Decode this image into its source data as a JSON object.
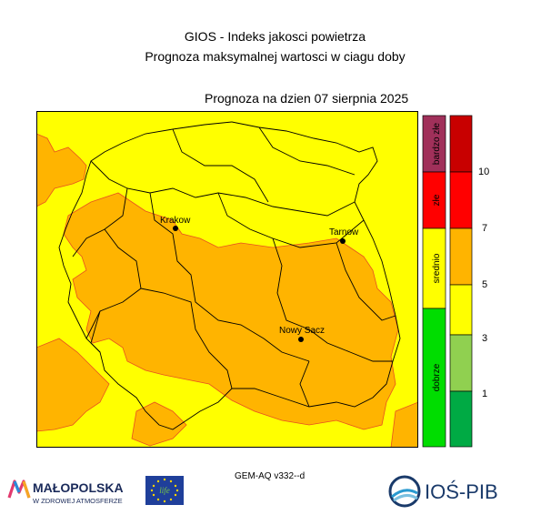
{
  "header": {
    "title_line1": "GIOS - Indeks jakosci powietrza",
    "title_line2": "Prognoza maksymalnej wartosci w ciagu doby",
    "forecast_date": "Prognoza na dzien  07 sierpnia 2025"
  },
  "map": {
    "cities": [
      {
        "name": "Krakow"
      },
      {
        "name": "Tarnow"
      },
      {
        "name": "Nowy Sacz"
      }
    ],
    "colors": {
      "yellow": "#ffff00",
      "orange": "#ffb400",
      "border": "#000000",
      "contour": "#e85020"
    }
  },
  "legend": {
    "categories": [
      {
        "label": "bardzo złe",
        "color": "#a0305a"
      },
      {
        "label": "złe",
        "color": "#ff0000"
      },
      {
        "label": "srednio",
        "color": "#ffff00"
      },
      {
        "label": "dobrze",
        "color": "#00dd00"
      }
    ],
    "bands": [
      {
        "color": "#c80000"
      },
      {
        "color": "#ff0000"
      },
      {
        "color": "#ffb400"
      },
      {
        "color": "#ffff00"
      },
      {
        "color": "#90d050"
      },
      {
        "color": "#00aa44"
      }
    ],
    "ticks": [
      "10",
      "7",
      "5",
      "3",
      "1"
    ]
  },
  "footer": {
    "model": "GEM-AQ v332--d",
    "malopolska_name": "MAŁOPOLSKA",
    "malopolska_tagline": "W ZDROWEJ ATMOSFERZE",
    "eu_life": "life",
    "ios_name": "IOŚ-PIB"
  }
}
